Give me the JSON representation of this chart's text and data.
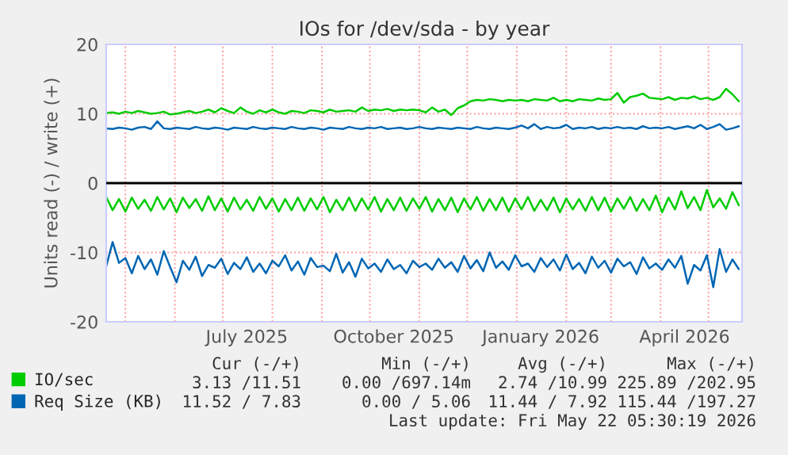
{
  "chart_data": {
    "type": "line",
    "title": "IOs for /dev/sda - by year",
    "ylabel": "Units read (-) / write (+)",
    "x": [
      "2025-04-19",
      "2025-04-23",
      "2025-04-27",
      "2025-05-01",
      "2025-05-05",
      "2025-05-09",
      "2025-05-13",
      "2025-05-17",
      "2025-05-21",
      "2025-05-25",
      "2025-05-29",
      "2025-06-02",
      "2025-06-06",
      "2025-06-10",
      "2025-06-14",
      "2025-06-18",
      "2025-06-22",
      "2025-06-26",
      "2025-06-30",
      "2025-07-04",
      "2025-07-08",
      "2025-07-12",
      "2025-07-16",
      "2025-07-20",
      "2025-07-24",
      "2025-07-28",
      "2025-08-01",
      "2025-08-05",
      "2025-08-09",
      "2025-08-13",
      "2025-08-17",
      "2025-08-21",
      "2025-08-25",
      "2025-08-29",
      "2025-09-02",
      "2025-09-06",
      "2025-09-10",
      "2025-09-14",
      "2025-09-18",
      "2025-09-22",
      "2025-09-26",
      "2025-09-30",
      "2025-10-04",
      "2025-10-08",
      "2025-10-12",
      "2025-10-16",
      "2025-10-20",
      "2025-10-24",
      "2025-10-28",
      "2025-11-01",
      "2025-11-05",
      "2025-11-09",
      "2025-11-13",
      "2025-11-17",
      "2025-11-21",
      "2025-11-25",
      "2025-11-29",
      "2025-12-03",
      "2025-12-07",
      "2025-12-11",
      "2025-12-15",
      "2025-12-19",
      "2025-12-23",
      "2025-12-27",
      "2025-12-31",
      "2026-01-04",
      "2026-01-08",
      "2026-01-12",
      "2026-01-16",
      "2026-01-20",
      "2026-01-24",
      "2026-01-28",
      "2026-02-01",
      "2026-02-05",
      "2026-02-09",
      "2026-02-13",
      "2026-02-17",
      "2026-02-21",
      "2026-02-25",
      "2026-03-01",
      "2026-03-05",
      "2026-03-09",
      "2026-03-13",
      "2026-03-17",
      "2026-03-21",
      "2026-03-25",
      "2026-03-29",
      "2026-04-02",
      "2026-04-06",
      "2026-04-10",
      "2026-04-14",
      "2026-04-18",
      "2026-04-22",
      "2026-04-26",
      "2026-04-30",
      "2026-05-04",
      "2026-05-08",
      "2026-05-12",
      "2026-05-16",
      "2026-05-20"
    ],
    "series": [
      {
        "name": "IO/sec",
        "color": "#00cc00",
        "values": [
          10.1,
          10.2,
          10.0,
          10.3,
          10.1,
          10.4,
          10.2,
          10.0,
          10.1,
          10.3,
          9.9,
          10.0,
          10.2,
          10.4,
          10.1,
          10.3,
          10.6,
          10.2,
          10.8,
          10.4,
          10.1,
          10.9,
          10.3,
          10.0,
          10.5,
          10.2,
          10.6,
          10.2,
          10.0,
          10.4,
          10.3,
          10.1,
          10.5,
          10.4,
          10.2,
          10.6,
          10.3,
          10.4,
          10.5,
          10.3,
          10.9,
          10.4,
          10.6,
          10.5,
          10.7,
          10.4,
          10.6,
          10.5,
          10.6,
          10.5,
          10.2,
          10.9,
          10.3,
          10.6,
          9.8,
          10.8,
          11.2,
          11.8,
          12.0,
          11.9,
          12.1,
          12.0,
          11.8,
          12.0,
          11.9,
          12.0,
          11.8,
          12.1,
          12.0,
          11.9,
          12.3,
          11.8,
          12.0,
          11.8,
          12.1,
          12.0,
          11.9,
          12.2,
          12.0,
          12.1,
          13.0,
          11.6,
          12.4,
          12.6,
          12.9,
          12.3,
          12.2,
          12.1,
          12.4,
          12.0,
          12.3,
          12.2,
          12.5,
          12.1,
          12.3,
          12.0,
          12.4,
          13.6,
          12.8,
          11.8
        ]
      },
      {
        "color": "#00cc00",
        "values": [
          -2.0,
          -3.9,
          -2.3,
          -4.1,
          -2.1,
          -3.7,
          -2.4,
          -4.0,
          -2.0,
          -3.8,
          -2.2,
          -4.2,
          -2.1,
          -3.6,
          -2.3,
          -4.0,
          -1.9,
          -3.9,
          -2.2,
          -4.1,
          -2.1,
          -3.8,
          -2.4,
          -4.0,
          -2.0,
          -3.7,
          -2.2,
          -4.1,
          -2.3,
          -3.9,
          -2.1,
          -4.0,
          -2.2,
          -3.8,
          -2.0,
          -4.2,
          -2.4,
          -3.9,
          -2.1,
          -4.0,
          -2.2,
          -3.8,
          -2.0,
          -4.1,
          -2.3,
          -3.9,
          -2.1,
          -4.0,
          -2.2,
          -3.7,
          -2.0,
          -4.1,
          -2.3,
          -3.9,
          -2.1,
          -4.2,
          -2.2,
          -3.8,
          -2.0,
          -4.0,
          -2.3,
          -3.9,
          -2.1,
          -4.1,
          -2.2,
          -3.8,
          -2.0,
          -4.0,
          -2.4,
          -3.9,
          -2.1,
          -4.2,
          -2.2,
          -3.8,
          -2.3,
          -4.0,
          -2.0,
          -3.9,
          -2.1,
          -4.1,
          -2.2,
          -3.7,
          -2.0,
          -4.0,
          -2.3,
          -3.9,
          -1.8,
          -4.2,
          -2.1,
          -3.8,
          -1.2,
          -3.6,
          -2.0,
          -3.9,
          -1.0,
          -3.5,
          -2.2,
          -3.7,
          -1.3,
          -3.2
        ]
      },
      {
        "name": "Req Size (KB)",
        "color": "#0066b3",
        "values": [
          7.9,
          7.8,
          8.0,
          7.9,
          7.7,
          8.0,
          8.1,
          7.8,
          8.9,
          7.9,
          7.8,
          8.0,
          7.9,
          7.8,
          8.1,
          7.9,
          7.8,
          8.0,
          7.9,
          7.7,
          8.0,
          7.9,
          7.8,
          8.1,
          7.9,
          7.8,
          8.0,
          7.9,
          7.8,
          8.1,
          7.9,
          7.8,
          8.0,
          7.9,
          7.7,
          8.0,
          7.9,
          7.8,
          8.1,
          7.9,
          7.8,
          8.0,
          7.9,
          8.1,
          7.8,
          7.9,
          8.0,
          7.8,
          7.9,
          8.1,
          7.9,
          7.8,
          8.0,
          7.9,
          7.8,
          8.0,
          7.9,
          7.8,
          8.1,
          7.9,
          7.8,
          8.0,
          7.9,
          7.8,
          8.0,
          8.3,
          7.9,
          8.5,
          7.8,
          8.1,
          7.9,
          8.0,
          8.4,
          7.8,
          8.0,
          7.9,
          8.1,
          7.8,
          8.0,
          7.9,
          8.1,
          7.9,
          8.0,
          7.8,
          8.2,
          7.9,
          8.0,
          7.9,
          8.1,
          7.8,
          8.0,
          8.2,
          7.9,
          8.4,
          7.8,
          8.1,
          8.5,
          7.7,
          7.9,
          8.2
        ]
      },
      {
        "color": "#0066b3",
        "values": [
          -12.0,
          -8.5,
          -11.5,
          -10.8,
          -13.0,
          -10.5,
          -12.4,
          -11.0,
          -13.2,
          -9.8,
          -12.1,
          -14.3,
          -11.2,
          -12.5,
          -10.6,
          -13.4,
          -11.8,
          -12.2,
          -10.9,
          -13.1,
          -11.5,
          -12.4,
          -10.7,
          -12.8,
          -11.6,
          -13.0,
          -11.2,
          -12.0,
          -10.4,
          -12.6,
          -11.3,
          -13.2,
          -10.8,
          -12.1,
          -11.9,
          -12.7,
          -10.2,
          -12.9,
          -11.4,
          -13.5,
          -10.9,
          -12.3,
          -11.6,
          -12.8,
          -11.0,
          -12.4,
          -11.8,
          -13.0,
          -11.2,
          -12.1,
          -11.6,
          -12.5,
          -10.9,
          -12.2,
          -11.4,
          -12.8,
          -10.5,
          -12.3,
          -11.1,
          -12.7,
          -10.0,
          -12.2,
          -11.3,
          -12.5,
          -10.4,
          -12.0,
          -11.6,
          -12.8,
          -10.8,
          -12.1,
          -11.0,
          -12.6,
          -10.3,
          -12.4,
          -11.5,
          -13.0,
          -10.6,
          -12.2,
          -11.2,
          -12.9,
          -10.9,
          -12.0,
          -11.4,
          -13.1,
          -10.7,
          -12.3,
          -11.6,
          -12.5,
          -11.0,
          -12.2,
          -10.5,
          -14.5,
          -11.8,
          -12.6,
          -10.4,
          -15.0,
          -9.5,
          -12.8,
          -11.0,
          -12.4
        ]
      }
    ],
    "xlim": [
      "2025-04-19",
      "2026-05-22"
    ],
    "xticks": [
      {
        "value": "2025-05-01",
        "label": null
      },
      {
        "value": "2025-06-01",
        "label": null
      },
      {
        "value": "2025-07-01",
        "label": null
      },
      {
        "value": "2025-07-16",
        "label": "July 2025"
      },
      {
        "value": "2025-08-01",
        "label": null
      },
      {
        "value": "2025-09-01",
        "label": null
      },
      {
        "value": "2025-10-01",
        "label": null
      },
      {
        "value": "2025-10-16",
        "label": "October 2025"
      },
      {
        "value": "2025-11-01",
        "label": null
      },
      {
        "value": "2025-12-01",
        "label": null
      },
      {
        "value": "2026-01-01",
        "label": null
      },
      {
        "value": "2026-01-16",
        "label": "January 2026"
      },
      {
        "value": "2026-02-01",
        "label": null
      },
      {
        "value": "2026-03-01",
        "label": null
      },
      {
        "value": "2026-04-01",
        "label": null
      },
      {
        "value": "2026-04-16",
        "label": "April 2026"
      },
      {
        "value": "2026-05-01",
        "label": null
      }
    ],
    "ylim": [
      -20,
      20
    ],
    "yticks": [
      -20,
      -10,
      0,
      10,
      20
    ],
    "grid": true,
    "legend": "bottom",
    "line_style": "solid",
    "ref_lines": [
      {
        "axis": "y",
        "value": 0,
        "color": "#000000"
      }
    ],
    "annotations": [
      "Cur (-/+)",
      "Min (-/+)",
      "Avg (-/+)",
      "Max (-/+)",
      "3.13 /11.51",
      "0.00 /697.14m",
      "2.74 /10.99",
      "225.89 /202.95",
      "11.52 / 7.83",
      "0.00 / 5.06",
      "11.44 / 7.92",
      "115.44 /197.27",
      "Last update: Fri May 22 05:30:19 2026"
    ]
  }
}
